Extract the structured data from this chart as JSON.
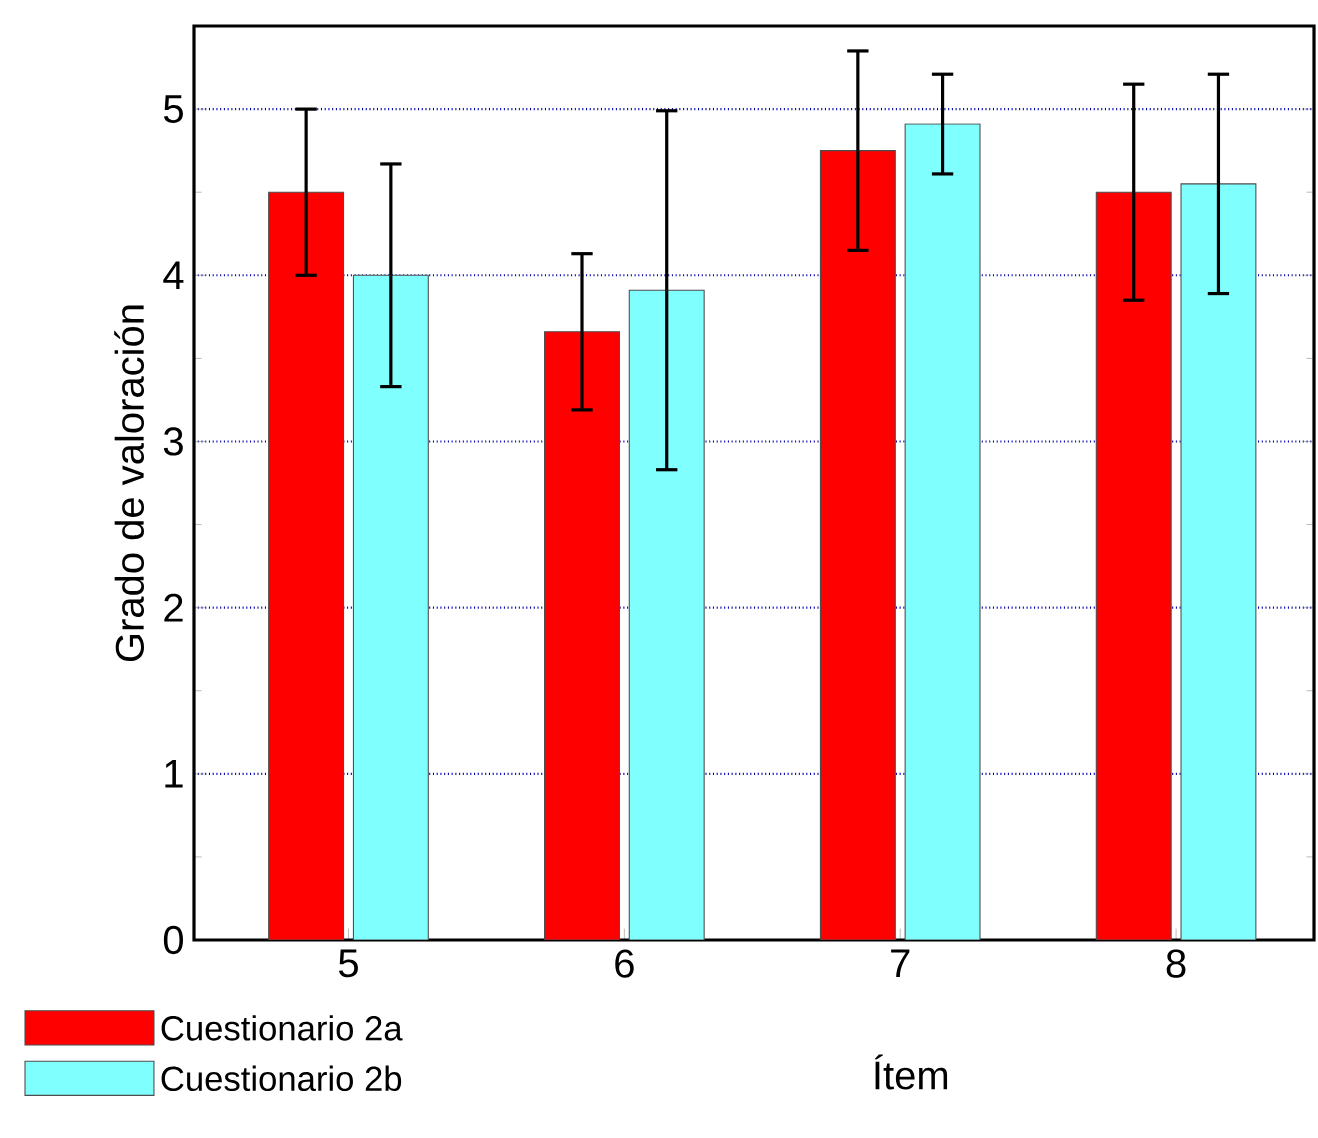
{
  "chart_data": {
    "type": "bar",
    "xlabel": "Ítem",
    "ylabel": "Grado de valoración",
    "categories": [
      "5",
      "6",
      "7",
      "8"
    ],
    "series": [
      {
        "name": "Cuestionario 2a",
        "color": "#ff0000",
        "values": [
          4.5,
          3.66,
          4.75,
          4.5
        ],
        "errors": [
          0.5,
          0.47,
          0.6,
          0.65
        ]
      },
      {
        "name": "Cuestionario 2b",
        "color": "#80ffff",
        "values": [
          4.0,
          3.91,
          4.91,
          4.55
        ],
        "errors": [
          0.67,
          1.08,
          0.3,
          0.66
        ]
      }
    ],
    "ylim": [
      0,
      5.5
    ],
    "yticks": [
      0,
      1,
      2,
      3,
      4,
      5
    ],
    "grid": "y",
    "legend": "bottom left"
  }
}
